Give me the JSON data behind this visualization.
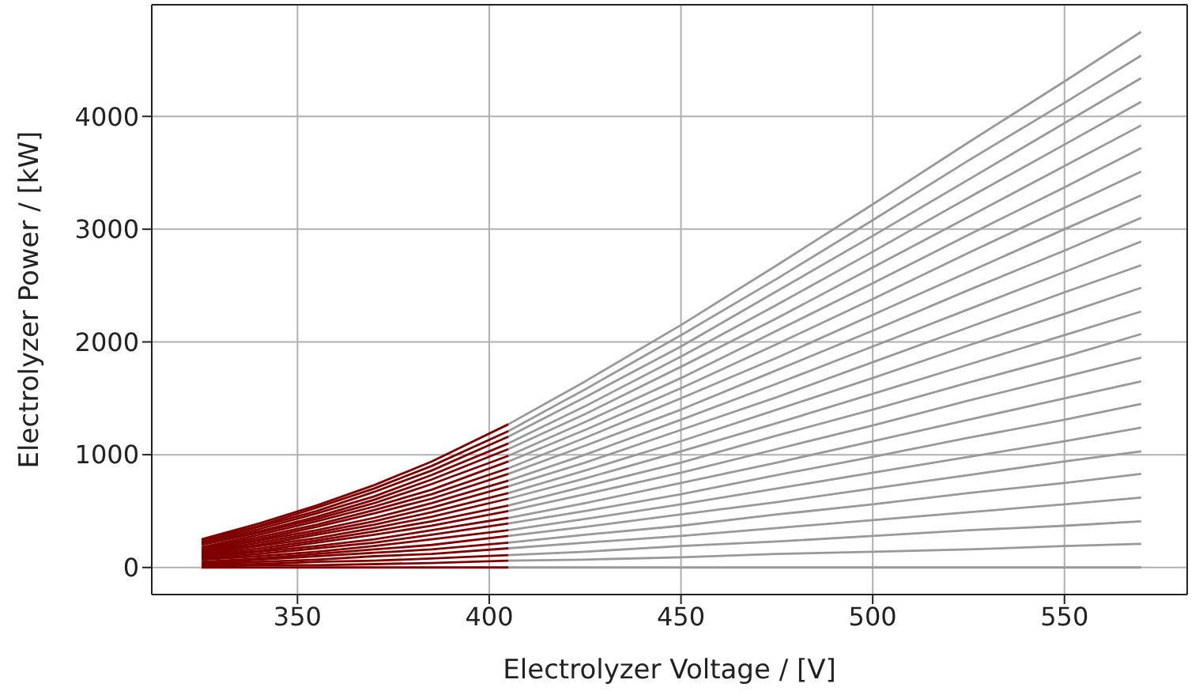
{
  "chart_data": {
    "type": "line",
    "xlabel": "Electrolyzer Voltage / [V]",
    "ylabel": "Electrolyzer Power / [kW]",
    "xlim": [
      312,
      582
    ],
    "ylim": [
      -240,
      4990
    ],
    "xticks": [
      350,
      400,
      450,
      500,
      550
    ],
    "yticks": [
      0,
      1000,
      2000,
      3000,
      4000
    ],
    "grid": true,
    "series": [
      {
        "color": "#999999",
        "x": [
          405,
          425,
          450,
          475,
          500,
          525,
          550,
          570
        ],
        "values": [
          0,
          0,
          0,
          0,
          0,
          0,
          0,
          0
        ]
      },
      {
        "color": "#999999",
        "x": [
          405,
          425,
          450,
          475,
          500,
          525,
          550,
          570
        ],
        "values": [
          60,
          70,
          90,
          120,
          140,
          160,
          190,
          210
        ]
      },
      {
        "color": "#999999",
        "x": [
          405,
          425,
          450,
          475,
          500,
          525,
          550,
          570
        ],
        "values": [
          110,
          140,
          190,
          230,
          280,
          330,
          370,
          410
        ]
      },
      {
        "color": "#999999",
        "x": [
          405,
          425,
          450,
          475,
          500,
          525,
          550,
          570
        ],
        "values": [
          170,
          220,
          280,
          350,
          420,
          490,
          560,
          620
        ]
      },
      {
        "color": "#999999",
        "x": [
          405,
          425,
          450,
          475,
          500,
          525,
          550,
          570
        ],
        "values": [
          220,
          290,
          370,
          470,
          560,
          660,
          750,
          830
        ]
      },
      {
        "color": "#999999",
        "x": [
          405,
          425,
          450,
          475,
          500,
          525,
          550,
          570
        ],
        "values": [
          280,
          360,
          470,
          580,
          700,
          820,
          940,
          1030
        ]
      },
      {
        "color": "#999999",
        "x": [
          405,
          425,
          450,
          475,
          500,
          525,
          550,
          570
        ],
        "values": [
          330,
          430,
          560,
          700,
          840,
          980,
          1120,
          1240
        ]
      },
      {
        "color": "#999999",
        "x": [
          405,
          425,
          450,
          475,
          500,
          525,
          550,
          570
        ],
        "values": [
          390,
          500,
          650,
          820,
          980,
          1150,
          1310,
          1450
        ]
      },
      {
        "color": "#999999",
        "x": [
          405,
          425,
          450,
          475,
          500,
          525,
          550,
          570
        ],
        "values": [
          440,
          570,
          750,
          930,
          1120,
          1310,
          1500,
          1650
        ]
      },
      {
        "color": "#999999",
        "x": [
          405,
          425,
          450,
          475,
          500,
          525,
          550,
          570
        ],
        "values": [
          500,
          650,
          840,
          1050,
          1260,
          1480,
          1690,
          1860
        ]
      },
      {
        "color": "#999999",
        "x": [
          405,
          425,
          450,
          475,
          500,
          525,
          550,
          570
        ],
        "values": [
          550,
          720,
          930,
          1170,
          1400,
          1640,
          1870,
          2070
        ]
      },
      {
        "color": "#999999",
        "x": [
          405,
          425,
          450,
          475,
          500,
          525,
          550,
          570
        ],
        "values": [
          610,
          790,
          1030,
          1280,
          1540,
          1800,
          2060,
          2270
        ]
      },
      {
        "color": "#999999",
        "x": [
          405,
          425,
          450,
          475,
          500,
          525,
          550,
          570
        ],
        "values": [
          660,
          860,
          1120,
          1400,
          1680,
          1970,
          2250,
          2480
        ]
      },
      {
        "color": "#999999",
        "x": [
          405,
          425,
          450,
          475,
          500,
          525,
          550,
          570
        ],
        "values": [
          720,
          930,
          1220,
          1510,
          1820,
          2130,
          2440,
          2680
        ]
      },
      {
        "color": "#999999",
        "x": [
          405,
          425,
          450,
          475,
          500,
          525,
          550,
          570
        ],
        "values": [
          770,
          1000,
          1310,
          1630,
          1960,
          2290,
          2620,
          2890
        ]
      },
      {
        "color": "#999999",
        "x": [
          405,
          425,
          450,
          475,
          500,
          525,
          550,
          570
        ],
        "values": [
          830,
          1080,
          1400,
          1750,
          2100,
          2460,
          2810,
          3100
        ]
      },
      {
        "color": "#999999",
        "x": [
          405,
          425,
          450,
          475,
          500,
          525,
          550,
          570
        ],
        "values": [
          880,
          1150,
          1500,
          1860,
          2240,
          2620,
          3000,
          3300
        ]
      },
      {
        "color": "#999999",
        "x": [
          405,
          425,
          450,
          475,
          500,
          525,
          550,
          570
        ],
        "values": [
          940,
          1220,
          1590,
          1980,
          2380,
          2790,
          3190,
          3510
        ]
      },
      {
        "color": "#999999",
        "x": [
          405,
          425,
          450,
          475,
          500,
          525,
          550,
          570
        ],
        "values": [
          990,
          1290,
          1680,
          2100,
          2520,
          2950,
          3370,
          3720
        ]
      },
      {
        "color": "#999999",
        "x": [
          405,
          425,
          450,
          475,
          500,
          525,
          550,
          570
        ],
        "values": [
          1050,
          1360,
          1780,
          2210,
          2660,
          3110,
          3560,
          3920
        ]
      },
      {
        "color": "#999999",
        "x": [
          405,
          425,
          450,
          475,
          500,
          525,
          550,
          570
        ],
        "values": [
          1100,
          1430,
          1870,
          2330,
          2800,
          3280,
          3750,
          4130
        ]
      },
      {
        "color": "#999999",
        "x": [
          405,
          425,
          450,
          475,
          500,
          525,
          550,
          570
        ],
        "values": [
          1160,
          1510,
          1960,
          2450,
          2940,
          3440,
          3940,
          4340
        ]
      },
      {
        "color": "#999999",
        "x": [
          405,
          425,
          450,
          475,
          500,
          525,
          550,
          570
        ],
        "values": [
          1210,
          1580,
          2060,
          2560,
          3080,
          3610,
          4120,
          4540
        ]
      },
      {
        "color": "#999999",
        "x": [
          405,
          425,
          450,
          475,
          500,
          525,
          550,
          570
        ],
        "values": [
          1270,
          1650,
          2150,
          2680,
          3220,
          3770,
          4310,
          4750
        ]
      },
      {
        "color": "#800000",
        "x": [
          325,
          340,
          355,
          370,
          385,
          405
        ],
        "values": [
          0,
          0,
          0,
          0,
          0,
          0
        ]
      },
      {
        "color": "#800000",
        "x": [
          325,
          340,
          355,
          370,
          385,
          405
        ],
        "values": [
          10,
          20,
          20,
          30,
          40,
          60
        ]
      },
      {
        "color": "#800000",
        "x": [
          325,
          340,
          355,
          370,
          385,
          405
        ],
        "values": [
          20,
          30,
          50,
          60,
          80,
          110
        ]
      },
      {
        "color": "#800000",
        "x": [
          325,
          340,
          355,
          370,
          385,
          405
        ],
        "values": [
          30,
          50,
          70,
          100,
          120,
          170
        ]
      },
      {
        "color": "#800000",
        "x": [
          325,
          340,
          355,
          370,
          385,
          405
        ],
        "values": [
          40,
          70,
          100,
          130,
          160,
          220
        ]
      },
      {
        "color": "#800000",
        "x": [
          325,
          340,
          355,
          370,
          385,
          405
        ],
        "values": [
          50,
          80,
          120,
          160,
          200,
          280
        ]
      },
      {
        "color": "#800000",
        "x": [
          325,
          340,
          355,
          370,
          385,
          405
        ],
        "values": [
          70,
          100,
          140,
          190,
          250,
          330
        ]
      },
      {
        "color": "#800000",
        "x": [
          325,
          340,
          355,
          370,
          385,
          405
        ],
        "values": [
          80,
          120,
          170,
          220,
          290,
          390
        ]
      },
      {
        "color": "#800000",
        "x": [
          325,
          340,
          355,
          370,
          385,
          405
        ],
        "values": [
          90,
          140,
          190,
          250,
          330,
          440
        ]
      },
      {
        "color": "#800000",
        "x": [
          325,
          340,
          355,
          370,
          385,
          405
        ],
        "values": [
          100,
          150,
          220,
          290,
          370,
          500
        ]
      },
      {
        "color": "#800000",
        "x": [
          325,
          340,
          355,
          370,
          385,
          405
        ],
        "values": [
          110,
          170,
          240,
          320,
          410,
          550
        ]
      },
      {
        "color": "#800000",
        "x": [
          325,
          340,
          355,
          370,
          385,
          405
        ],
        "values": [
          120,
          190,
          260,
          350,
          450,
          610
        ]
      },
      {
        "color": "#800000",
        "x": [
          325,
          340,
          355,
          370,
          385,
          405
        ],
        "values": [
          130,
          200,
          290,
          380,
          490,
          660
        ]
      },
      {
        "color": "#800000",
        "x": [
          325,
          340,
          355,
          370,
          385,
          405
        ],
        "values": [
          140,
          220,
          310,
          410,
          530,
          720
        ]
      },
      {
        "color": "#800000",
        "x": [
          325,
          340,
          355,
          370,
          385,
          405
        ],
        "values": [
          150,
          240,
          330,
          440,
          570,
          770
        ]
      },
      {
        "color": "#800000",
        "x": [
          325,
          340,
          355,
          370,
          385,
          405
        ],
        "values": [
          160,
          250,
          360,
          480,
          610,
          830
        ]
      },
      {
        "color": "#800000",
        "x": [
          325,
          340,
          355,
          370,
          385,
          405
        ],
        "values": [
          170,
          270,
          380,
          510,
          650,
          880
        ]
      },
      {
        "color": "#800000",
        "x": [
          325,
          340,
          355,
          370,
          385,
          405
        ],
        "values": [
          180,
          290,
          410,
          540,
          690,
          940
        ]
      },
      {
        "color": "#800000",
        "x": [
          325,
          340,
          355,
          370,
          385,
          405
        ],
        "values": [
          200,
          310,
          430,
          570,
          740,
          990
        ]
      },
      {
        "color": "#800000",
        "x": [
          325,
          340,
          355,
          370,
          385,
          405
        ],
        "values": [
          210,
          320,
          450,
          600,
          780,
          1050
        ]
      },
      {
        "color": "#800000",
        "x": [
          325,
          340,
          355,
          370,
          385,
          405
        ],
        "values": [
          220,
          340,
          480,
          630,
          820,
          1100
        ]
      },
      {
        "color": "#800000",
        "x": [
          325,
          340,
          355,
          370,
          385,
          405
        ],
        "values": [
          230,
          360,
          500,
          670,
          860,
          1160
        ]
      },
      {
        "color": "#800000",
        "x": [
          325,
          340,
          355,
          370,
          385,
          405
        ],
        "values": [
          240,
          370,
          530,
          700,
          900,
          1210
        ]
      },
      {
        "color": "#800000",
        "x": [
          325,
          340,
          355,
          370,
          385,
          405
        ],
        "values": [
          250,
          390,
          550,
          730,
          940,
          1270
        ]
      }
    ]
  }
}
